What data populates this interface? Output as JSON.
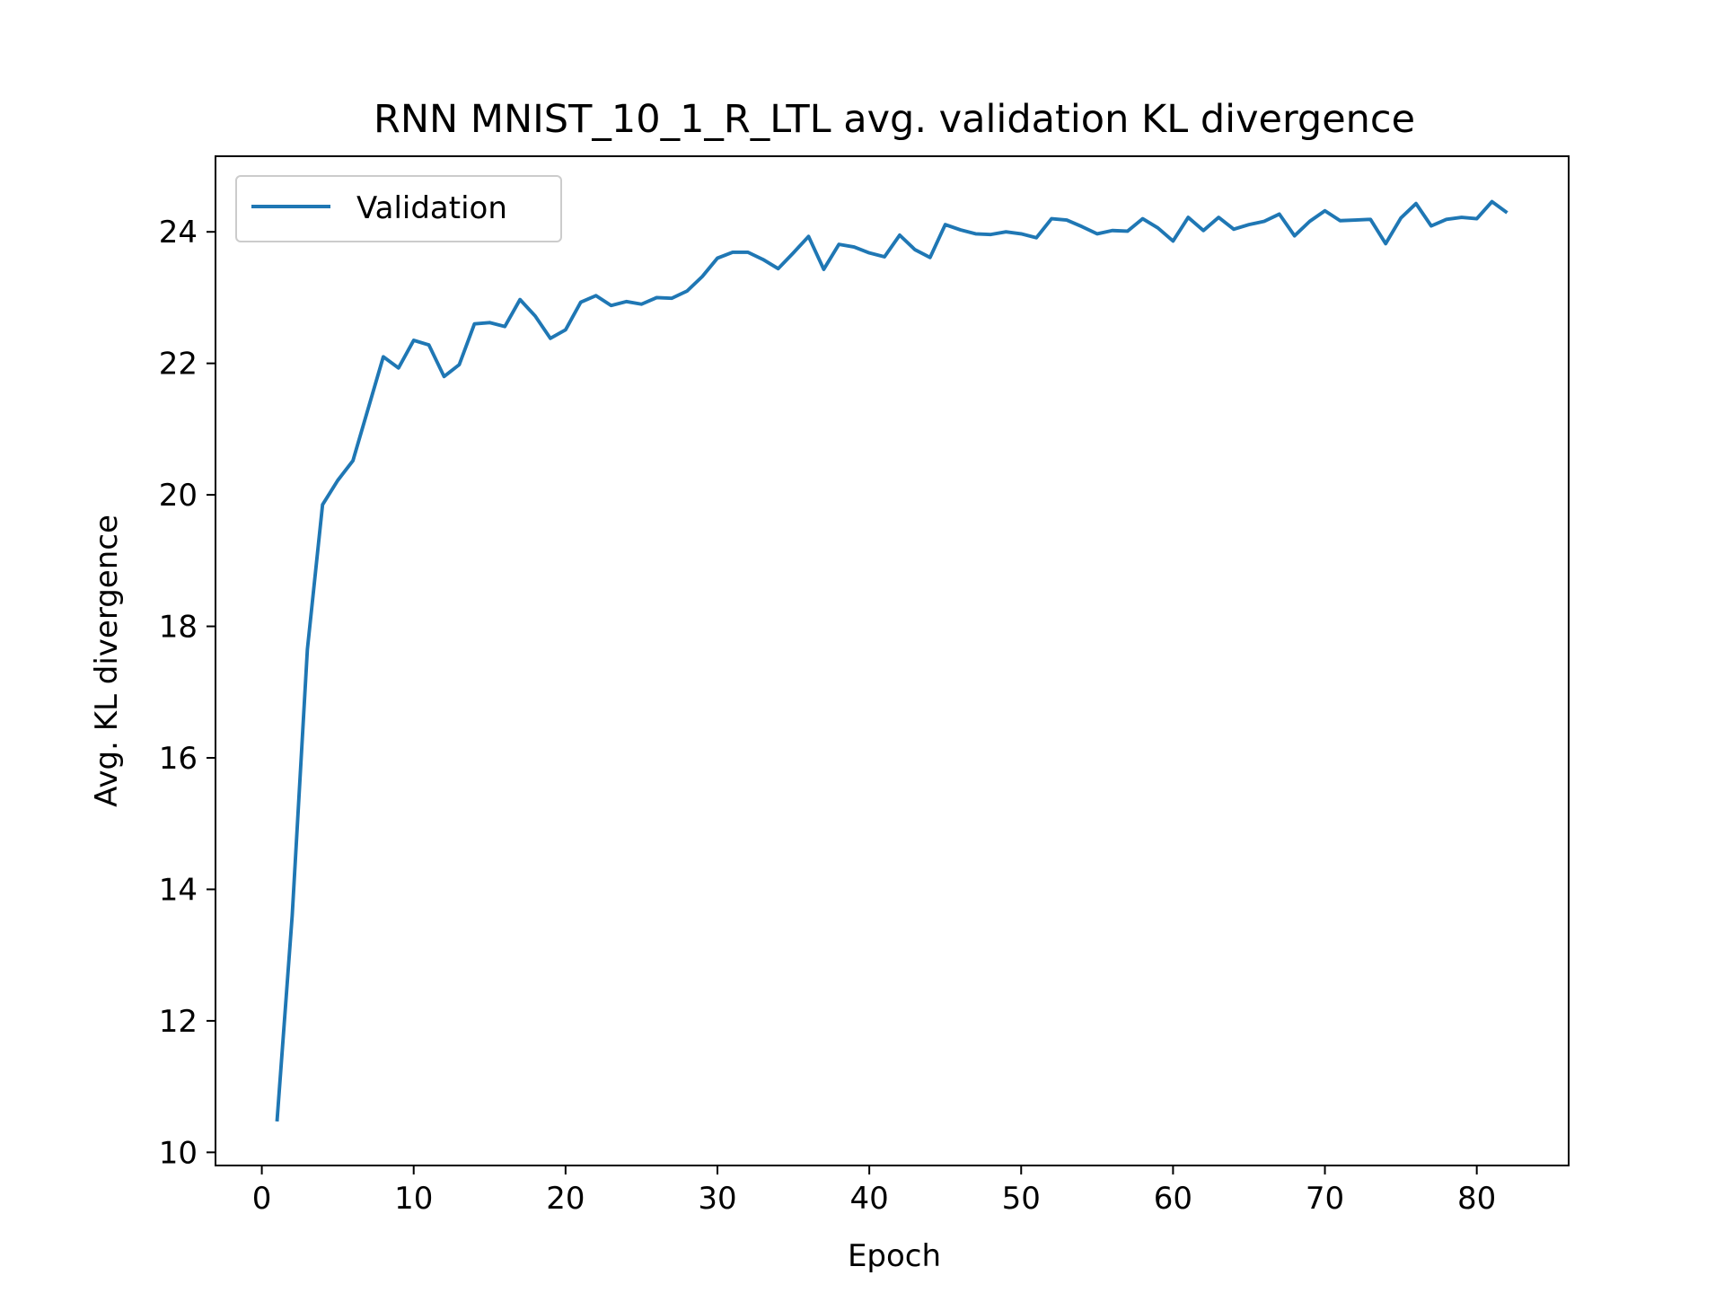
{
  "chart_data": {
    "type": "line",
    "title": "RNN MNIST_10_1_R_LTL avg. validation KL divergence",
    "xlabel": "Epoch",
    "ylabel": "Avg. KL divergence",
    "xlim": [
      -3.05,
      86.05
    ],
    "ylim": [
      9.8,
      25.15
    ],
    "xticks": [
      0,
      10,
      20,
      30,
      40,
      50,
      60,
      70,
      80
    ],
    "yticks": [
      10,
      12,
      14,
      16,
      18,
      20,
      22,
      24
    ],
    "grid": false,
    "legend": {
      "position": "upper-left",
      "entries": [
        "Validation"
      ]
    },
    "series": [
      {
        "name": "Validation",
        "color": "#1f77b4",
        "x": [
          1,
          2,
          3,
          4,
          5,
          6,
          7,
          8,
          9,
          10,
          11,
          12,
          13,
          14,
          15,
          16,
          17,
          18,
          19,
          20,
          21,
          22,
          23,
          24,
          25,
          26,
          27,
          28,
          29,
          30,
          31,
          32,
          33,
          34,
          35,
          36,
          37,
          38,
          39,
          40,
          41,
          42,
          43,
          44,
          45,
          46,
          47,
          48,
          49,
          50,
          51,
          52,
          53,
          54,
          55,
          56,
          57,
          58,
          59,
          60,
          61,
          62,
          63,
          64,
          65,
          66,
          67,
          68,
          69,
          70,
          71,
          72,
          73,
          74,
          75,
          76,
          77,
          78,
          79,
          80,
          81,
          82
        ],
        "values": [
          10.47,
          13.6,
          17.65,
          19.85,
          20.22,
          20.52,
          21.31,
          22.1,
          21.93,
          22.35,
          22.28,
          21.8,
          21.98,
          22.6,
          22.62,
          22.56,
          22.97,
          22.72,
          22.38,
          22.51,
          22.93,
          23.03,
          22.88,
          22.94,
          22.9,
          23.0,
          22.99,
          23.1,
          23.32,
          23.6,
          23.69,
          23.69,
          23.58,
          23.44,
          23.68,
          23.93,
          23.43,
          23.81,
          23.77,
          23.68,
          23.62,
          23.95,
          23.73,
          23.61,
          24.11,
          24.03,
          23.97,
          23.96,
          24.0,
          23.97,
          23.91,
          24.2,
          24.18,
          24.08,
          23.97,
          24.02,
          24.01,
          24.2,
          24.06,
          23.86,
          24.22,
          24.02,
          24.22,
          24.04,
          24.11,
          24.16,
          24.27,
          23.94,
          24.16,
          24.32,
          24.17,
          24.18,
          24.19,
          23.82,
          24.21,
          24.43,
          24.09,
          24.19,
          24.22,
          24.2,
          24.46,
          24.29
        ]
      }
    ]
  }
}
